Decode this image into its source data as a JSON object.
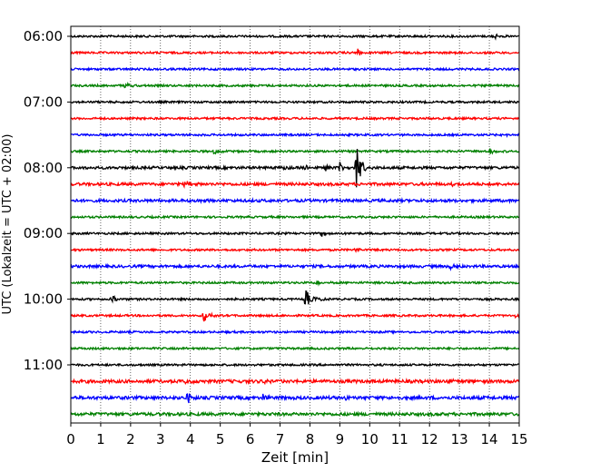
{
  "chart_data": {
    "type": "line",
    "title": "",
    "xlabel": "Zeit  [min]",
    "ylabel": "UTC (Lokalzeit = UTC + 02:00)",
    "xlim": [
      0,
      15
    ],
    "x_ticks": [
      "0",
      "1",
      "2",
      "3",
      "4",
      "5",
      "6",
      "7",
      "8",
      "9",
      "10",
      "11",
      "12",
      "13",
      "14",
      "15"
    ],
    "y_ticks": [
      "06:00",
      "07:00",
      "08:00",
      "09:00",
      "10:00",
      "11:00"
    ],
    "grid": "vertical dotted lines at each minute",
    "traces_per_hour": 4,
    "trace_colors": [
      "#000000",
      "#ff0000",
      "#0000ff",
      "#008000"
    ],
    "traces": [
      {
        "start": "06:00",
        "color": "#000000",
        "noise": 1.0,
        "events": [
          {
            "t": 14.2,
            "amp": 2
          }
        ]
      },
      {
        "start": "06:15",
        "color": "#ff0000",
        "noise": 1.0,
        "events": [
          {
            "t": 9.6,
            "amp": 5
          }
        ]
      },
      {
        "start": "06:30",
        "color": "#0000ff",
        "noise": 1.0,
        "events": []
      },
      {
        "start": "06:45",
        "color": "#008000",
        "noise": 1.0,
        "events": [
          {
            "t": 1.8,
            "amp": 3
          }
        ]
      },
      {
        "start": "07:00",
        "color": "#000000",
        "noise": 1.0,
        "events": []
      },
      {
        "start": "07:15",
        "color": "#ff0000",
        "noise": 1.0,
        "events": []
      },
      {
        "start": "07:30",
        "color": "#0000ff",
        "noise": 1.0,
        "events": [
          {
            "t": 14.5,
            "amp": 2
          }
        ]
      },
      {
        "start": "07:45",
        "color": "#008000",
        "noise": 1.0,
        "events": [
          {
            "t": 4.8,
            "amp": 4
          },
          {
            "t": 14.0,
            "amp": 3
          }
        ]
      },
      {
        "start": "08:00",
        "color": "#000000",
        "noise": 1.3,
        "events": [
          {
            "t": 7.0,
            "amp": 3
          },
          {
            "t": 7.8,
            "amp": 4
          },
          {
            "t": 8.5,
            "amp": 3
          },
          {
            "t": 9.0,
            "amp": 6
          },
          {
            "t": 9.55,
            "amp": 28
          }
        ]
      },
      {
        "start": "08:15",
        "color": "#ff0000",
        "noise": 1.4,
        "events": [
          {
            "t": 3.8,
            "amp": 4
          },
          {
            "t": 12.7,
            "amp": 3
          }
        ]
      },
      {
        "start": "08:30",
        "color": "#0000ff",
        "noise": 1.4,
        "events": [
          {
            "t": 4.2,
            "amp": 4
          }
        ]
      },
      {
        "start": "08:45",
        "color": "#008000",
        "noise": 1.0,
        "events": []
      },
      {
        "start": "09:00",
        "color": "#000000",
        "noise": 1.0,
        "events": [
          {
            "t": 8.4,
            "amp": 3
          }
        ]
      },
      {
        "start": "09:15",
        "color": "#ff0000",
        "noise": 1.0,
        "events": [
          {
            "t": 9.5,
            "amp": 3
          }
        ]
      },
      {
        "start": "09:30",
        "color": "#0000ff",
        "noise": 1.3,
        "events": [
          {
            "t": 12.7,
            "amp": 6
          }
        ]
      },
      {
        "start": "09:45",
        "color": "#008000",
        "noise": 1.0,
        "events": [
          {
            "t": 8.2,
            "amp": 3
          }
        ]
      },
      {
        "start": "10:00",
        "color": "#000000",
        "noise": 1.0,
        "events": [
          {
            "t": 1.35,
            "amp": 5
          },
          {
            "t": 7.85,
            "amp": 12
          },
          {
            "t": 8.1,
            "amp": 6
          }
        ]
      },
      {
        "start": "10:15",
        "color": "#ff0000",
        "noise": 1.0,
        "events": [
          {
            "t": 4.45,
            "amp": 9
          },
          {
            "t": 14.9,
            "amp": 3
          }
        ]
      },
      {
        "start": "10:30",
        "color": "#0000ff",
        "noise": 1.0,
        "events": []
      },
      {
        "start": "10:45",
        "color": "#008000",
        "noise": 1.0,
        "events": []
      },
      {
        "start": "11:00",
        "color": "#000000",
        "noise": 1.0,
        "events": []
      },
      {
        "start": "11:15",
        "color": "#ff0000",
        "noise": 1.6,
        "events": [
          {
            "t": 3.8,
            "amp": 3
          },
          {
            "t": 6.5,
            "amp": 3
          },
          {
            "t": 12.6,
            "amp": 3
          }
        ]
      },
      {
        "start": "11:30",
        "color": "#0000ff",
        "noise": 1.6,
        "events": [
          {
            "t": 3.9,
            "amp": 6
          },
          {
            "t": 6.4,
            "amp": 5
          },
          {
            "t": 9.2,
            "amp": 3
          }
        ]
      },
      {
        "start": "11:45",
        "color": "#008000",
        "noise": 1.5,
        "events": []
      }
    ]
  }
}
